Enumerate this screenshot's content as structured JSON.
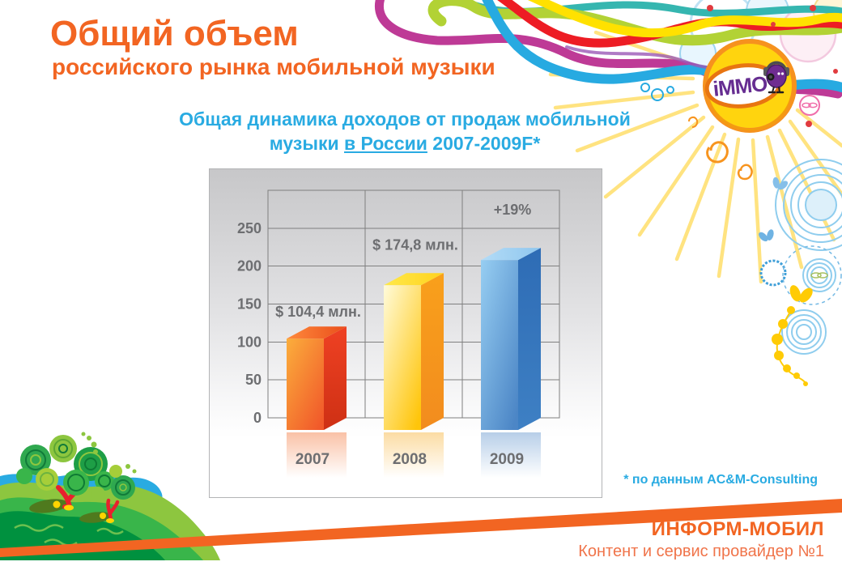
{
  "header": {
    "title": "Общий объем",
    "subtitle": "российского рынка мобильной музыки"
  },
  "chart": {
    "title_line1": "Общая динамика доходов от продаж мобильной",
    "title_line2_pre": "музыки ",
    "title_line2_underlined": "в России",
    "title_line2_post": " 2007-2009F*"
  },
  "chart_data": {
    "type": "bar",
    "title": "Общая динамика доходов от продаж мобильной музыки в России 2007-2009F*",
    "categories": [
      "2007",
      "2008",
      "2009"
    ],
    "values": [
      104.4,
      174.8,
      208
    ],
    "bar_labels": [
      "$ 104,4 млн.",
      "$ 174,8 млн.",
      "+19%"
    ],
    "ylim": [
      0,
      300
    ],
    "yticks": [
      0,
      50,
      100,
      150,
      200,
      250
    ],
    "xlabel": "",
    "ylabel": "",
    "grid": true,
    "legend": false,
    "label_offsets": [
      -27,
      -44,
      -56
    ],
    "bar_styles": [
      {
        "name": "2007",
        "front": [
          "#FBAE3C",
          "#F1592A"
        ],
        "side": [
          "#EF4123",
          "#CE3014"
        ],
        "top": [
          "#FF8A3C",
          "#E94E1B"
        ],
        "reflect": "#F26522"
      },
      {
        "name": "2008",
        "front": [
          "#FFFBDA",
          "#FFC50A"
        ],
        "side": [
          "#F9A01B",
          "#F28C1E"
        ],
        "top": [
          "#FFE94A",
          "#FFD21E"
        ],
        "reflect": "#F7A81B"
      },
      {
        "name": "2009",
        "front": [
          "#97CEF2",
          "#4C86C6"
        ],
        "side": [
          "#2E6CB5",
          "#3E80C4"
        ],
        "top": [
          "#B3DCF7",
          "#8FC6EE"
        ],
        "reflect": "#4C86C6"
      }
    ]
  },
  "footnote": {
    "text": "* по данным  AC&M-Consulting"
  },
  "footer": {
    "company": "ИНФОРМ-МОБИЛ",
    "tagline": "Контент и сервис провайдер №1"
  },
  "logo": {
    "text": "iMMO"
  },
  "colors": {
    "accent_orange": "#F26522",
    "accent_blue": "#29ABE2",
    "chart_text_gray": "#6D6E71"
  }
}
